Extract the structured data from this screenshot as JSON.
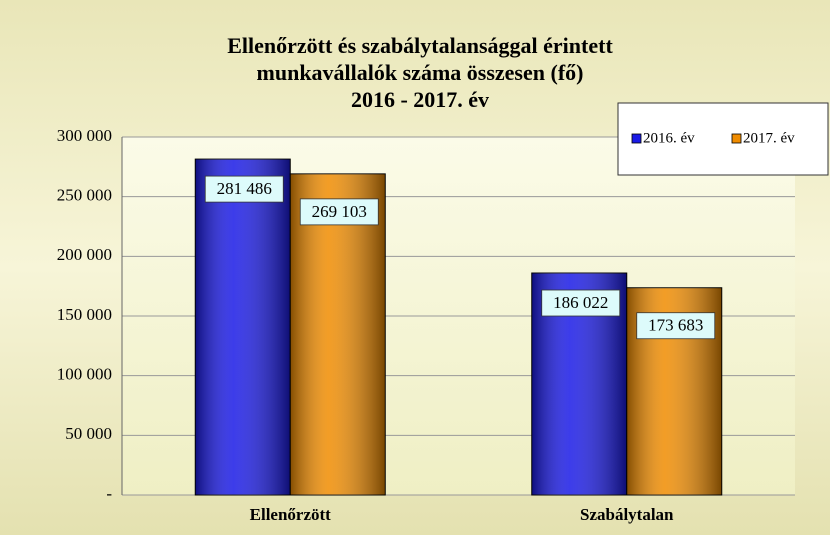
{
  "chart_data": {
    "type": "bar",
    "title": [
      "Ellenőrzött  és szabálytalansággal  érintett",
      "munkavállalók  száma  összesen (fő)",
      "2016 - 2017.  év"
    ],
    "categories": [
      "Ellenőrzött",
      "Szabálytalan"
    ],
    "series": [
      {
        "name": "2016. év",
        "color": "#1a1ae6",
        "values": [
          281486,
          186022
        ],
        "value_labels": [
          "281 486",
          "186 022"
        ]
      },
      {
        "name": "2017. év",
        "color": "#f08c00",
        "values": [
          269103,
          173683
        ],
        "value_labels": [
          "269 103",
          "173 683"
        ]
      }
    ],
    "ylim": [
      0,
      300000
    ],
    "yticks": [
      {
        "value": 0,
        "label": "-"
      },
      {
        "value": 50000,
        "label": "50 000"
      },
      {
        "value": 100000,
        "label": "100 000"
      },
      {
        "value": 150000,
        "label": "150 000"
      },
      {
        "value": 200000,
        "label": "200 000"
      },
      {
        "value": 250000,
        "label": "250 000"
      },
      {
        "value": 300000,
        "label": "300 000"
      }
    ],
    "grid": true,
    "legend": "top-right"
  }
}
